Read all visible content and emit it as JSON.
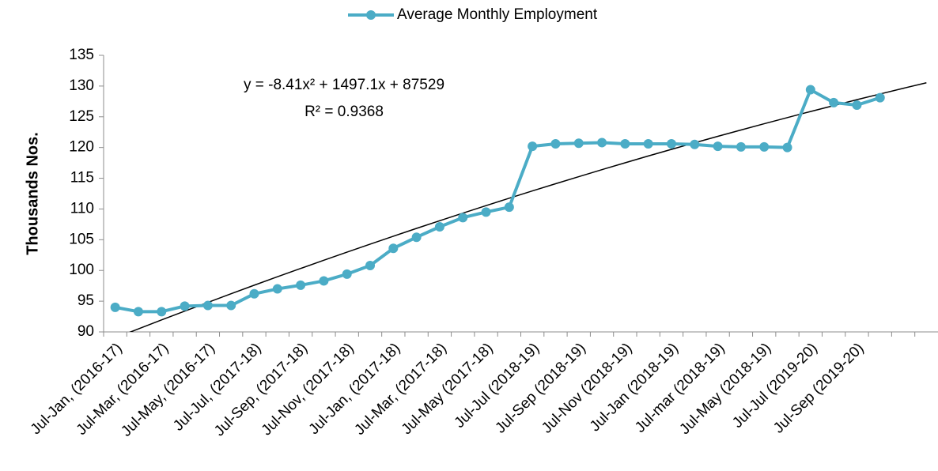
{
  "chart_data": {
    "type": "line",
    "y_axis_label": "Thousands Nos.",
    "annotations": [
      "y = -8.41x² + 1497.1x + 87529",
      "R² = 0.9368"
    ],
    "categories": [
      "Jul-Jan, (2016-17)",
      null,
      "Jul-Mar, (2016-17)",
      null,
      "Jul-May, (2016-17)",
      null,
      "Jul-Jul, (2017-18)",
      null,
      "Jul-Sep, (2017-18)",
      null,
      "Jul-Nov, (2017-18)",
      null,
      "Jul-Jan, (2017-18)",
      null,
      "Jul-Mar, (2017-18)",
      null,
      "Jul-May (2017-18)",
      null,
      "Jul-Jul (2018-19)",
      null,
      "Jul-Sep (2018-19)",
      null,
      "Jul-Nov (2018-19)",
      null,
      "Jul-Jan (2018-19)",
      null,
      "Jul-mar (2018-19)",
      null,
      "Jul-May (2018-19)",
      null,
      "Jul-Jul (2019-20)",
      null,
      "Jul-Sep (2019-20)",
      null,
      null,
      null
    ],
    "series": [
      {
        "name": "Average Monthly Employment",
        "color": "#4bacc6",
        "values": [
          94.0,
          93.3,
          93.3,
          94.2,
          94.3,
          94.3,
          96.2,
          97.0,
          97.6,
          98.3,
          99.4,
          100.8,
          103.6,
          105.4,
          107.1,
          108.6,
          109.5,
          110.3,
          120.2,
          120.6,
          120.7,
          120.8,
          120.6,
          120.6,
          120.6,
          120.5,
          120.2,
          120.1,
          120.1,
          120.0,
          129.4,
          127.3,
          126.9,
          128.1,
          null,
          null
        ]
      }
    ],
    "trendline": {
      "color": "#000000",
      "values": [
        89.02,
        90.49,
        91.95,
        93.38,
        94.8,
        96.21,
        97.6,
        98.97,
        100.32,
        101.66,
        102.98,
        104.28,
        105.57,
        106.84,
        108.09,
        109.33,
        110.55,
        111.75,
        112.94,
        114.11,
        115.26,
        116.4,
        117.51,
        118.62,
        119.7,
        120.77,
        121.82,
        122.85,
        123.87,
        124.87,
        125.86,
        126.82,
        127.78,
        128.71,
        129.63,
        130.53
      ]
    },
    "ylim": [
      90,
      135
    ],
    "yticks": [
      90,
      95,
      100,
      105,
      110,
      115,
      120,
      125,
      130,
      135
    ],
    "legend": "top"
  }
}
